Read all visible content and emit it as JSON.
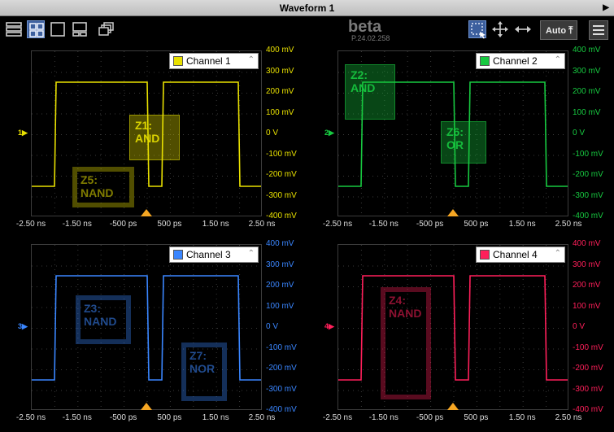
{
  "window": {
    "title": "Waveform 1"
  },
  "toolbar": {
    "beta_label": "beta",
    "version": "P.24.02.258",
    "auto_label": "Auto",
    "icons": [
      "layout-stack-icon",
      "layout-grid-icon",
      "layout-single-icon",
      "layout-split-icon",
      "layout-overlap-icon",
      "rectangle-select-icon",
      "pan-icon",
      "horizontal-zoom-icon",
      "menu-icon"
    ]
  },
  "x_axis": {
    "ticks": [
      "-2.50 ns",
      "-1.50 ns",
      "-500 ps",
      "500 ps",
      "1.50 ns",
      "2.50 ns"
    ]
  },
  "y_axis": {
    "ticks": [
      "400 mV",
      "300 mV",
      "200 mV",
      "100 mV",
      "0 V",
      "-100 mV",
      "-200 mV",
      "-300 mV",
      "-400 mV"
    ]
  },
  "channels": [
    {
      "name": "Channel 1",
      "marker": "1",
      "color": "#e8e000",
      "zones": [
        {
          "label": "Z1:\nAND",
          "style": "solid"
        },
        {
          "label": "Z5:\nNAND",
          "style": "ring"
        }
      ]
    },
    {
      "name": "Channel 2",
      "marker": "2",
      "color": "#17c940",
      "zones": [
        {
          "label": "Z2:\nAND",
          "style": "solid"
        },
        {
          "label": "Z6:\nOR",
          "style": "solid"
        }
      ]
    },
    {
      "name": "Channel 3",
      "marker": "3",
      "color": "#3a86ff",
      "zones": [
        {
          "label": "Z3:\nNAND",
          "style": "ring"
        },
        {
          "label": "Z7:\nNOR",
          "style": "ring"
        }
      ]
    },
    {
      "name": "Channel 4",
      "marker": "4",
      "color": "#ff1f5a",
      "zones": [
        {
          "label": "Z4:\nNAND",
          "style": "ring"
        }
      ]
    }
  ]
}
